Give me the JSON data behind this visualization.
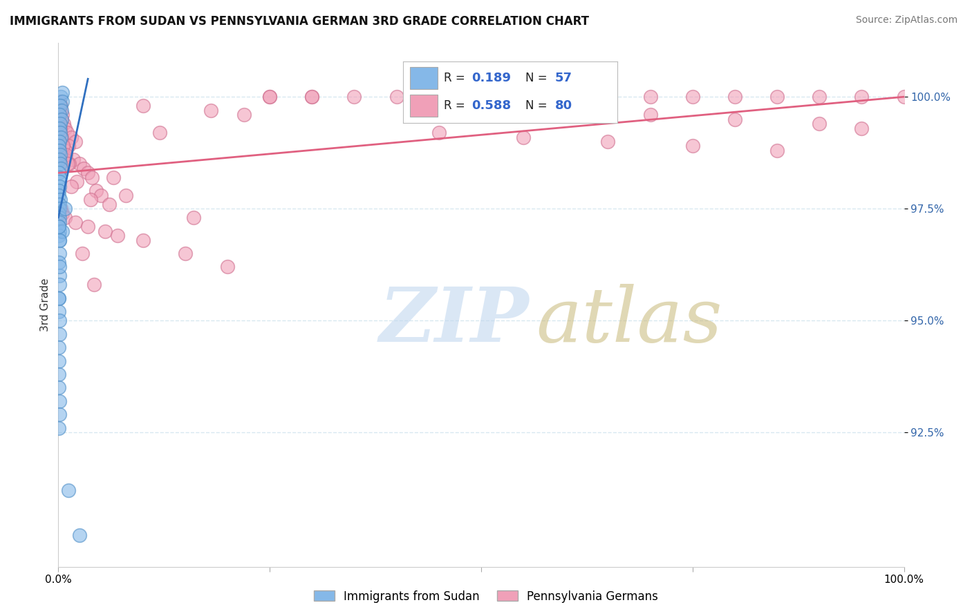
{
  "title": "IMMIGRANTS FROM SUDAN VS PENNSYLVANIA GERMAN 3RD GRADE CORRELATION CHART",
  "source": "Source: ZipAtlas.com",
  "ylabel": "3rd Grade",
  "blue_R": 0.189,
  "blue_N": 57,
  "pink_R": 0.588,
  "pink_N": 80,
  "blue_label": "Immigrants from Sudan",
  "pink_label": "Pennsylvania Germans",
  "blue_color": "#85B8E8",
  "pink_color": "#F0A0B8",
  "blue_edge_color": "#5090C8",
  "pink_edge_color": "#D07090",
  "blue_trend_color": "#3070C0",
  "pink_trend_color": "#E06080",
  "legend_R_color": "#3366CC",
  "legend_N_color": "#3366CC",
  "background_color": "#ffffff",
  "grid_color": "#D8E8F0",
  "xlim": [
    0.0,
    100.0
  ],
  "ylim": [
    89.5,
    101.2
  ],
  "y_ticks": [
    92.5,
    95.0,
    97.5,
    100.0
  ],
  "blue_points_x": [
    0.3,
    0.5,
    0.5,
    0.2,
    0.4,
    0.15,
    0.35,
    0.25,
    0.1,
    0.2,
    0.3,
    0.15,
    0.08,
    0.12,
    0.18,
    0.1,
    0.22,
    0.28,
    0.08,
    0.15,
    0.1,
    0.12,
    0.05,
    0.08,
    0.18,
    0.15,
    0.1,
    0.08,
    0.12,
    0.1,
    0.05,
    0.12,
    0.08,
    0.1,
    0.15,
    0.08,
    0.12,
    0.1,
    0.05,
    0.08,
    0.12,
    0.1,
    0.05,
    0.08,
    0.5,
    0.8,
    0.05,
    0.08,
    0.1,
    0.12,
    0.08,
    0.05,
    0.1,
    0.12,
    0.08,
    1.2,
    2.5
  ],
  "blue_points_y": [
    100.0,
    100.1,
    99.9,
    99.8,
    99.7,
    99.6,
    99.5,
    99.4,
    99.3,
    99.2,
    99.1,
    99.0,
    98.9,
    98.8,
    98.7,
    98.6,
    98.5,
    98.4,
    98.3,
    98.2,
    98.1,
    98.0,
    97.9,
    97.8,
    97.7,
    97.6,
    97.5,
    97.4,
    97.3,
    97.2,
    97.1,
    97.0,
    96.9,
    96.8,
    96.5,
    96.3,
    96.0,
    95.8,
    95.5,
    95.2,
    95.0,
    94.7,
    94.4,
    94.1,
    97.0,
    97.5,
    93.8,
    93.5,
    93.2,
    92.9,
    92.6,
    95.5,
    96.2,
    96.8,
    97.1,
    91.2,
    90.2
  ],
  "pink_points_x": [
    0.15,
    0.3,
    0.2,
    0.5,
    0.4,
    0.6,
    0.8,
    1.0,
    1.5,
    2.0,
    1.2,
    0.8,
    0.6,
    1.8,
    2.5,
    3.0,
    3.5,
    4.0,
    2.2,
    1.5,
    4.5,
    5.0,
    3.8,
    6.0,
    0.3,
    0.5,
    0.8,
    2.0,
    3.5,
    5.5,
    7.0,
    10.0,
    15.0,
    20.0,
    25.0,
    30.0,
    25.0,
    30.0,
    35.0,
    40.0,
    45.0,
    50.0,
    55.0,
    60.0,
    65.0,
    70.0,
    75.0,
    80.0,
    85.0,
    90.0,
    95.0,
    100.0,
    50.0,
    60.0,
    70.0,
    80.0,
    90.0,
    95.0,
    45.0,
    55.0,
    65.0,
    75.0,
    85.0,
    10.0,
    18.0,
    22.0,
    0.4,
    0.7,
    1.3,
    2.8,
    4.2,
    6.5,
    8.0,
    12.0,
    0.2,
    0.35,
    0.55,
    0.9,
    1.1,
    16.0
  ],
  "pink_points_y": [
    99.9,
    99.8,
    99.7,
    99.6,
    99.5,
    99.4,
    99.3,
    99.2,
    99.1,
    99.0,
    98.9,
    98.8,
    98.7,
    98.6,
    98.5,
    98.4,
    98.3,
    98.2,
    98.1,
    98.0,
    97.9,
    97.8,
    97.7,
    97.6,
    97.5,
    97.4,
    97.3,
    97.2,
    97.1,
    97.0,
    96.9,
    96.8,
    96.5,
    96.2,
    100.0,
    100.0,
    100.0,
    100.0,
    100.0,
    100.0,
    100.0,
    100.0,
    100.0,
    100.0,
    100.0,
    100.0,
    100.0,
    100.0,
    100.0,
    100.0,
    100.0,
    100.0,
    99.8,
    99.7,
    99.6,
    99.5,
    99.4,
    99.3,
    99.2,
    99.1,
    99.0,
    98.9,
    98.8,
    99.8,
    99.7,
    99.6,
    98.7,
    98.6,
    98.5,
    96.5,
    95.8,
    98.2,
    97.8,
    99.2,
    99.3,
    99.1,
    98.9,
    98.7,
    98.5,
    97.3
  ]
}
